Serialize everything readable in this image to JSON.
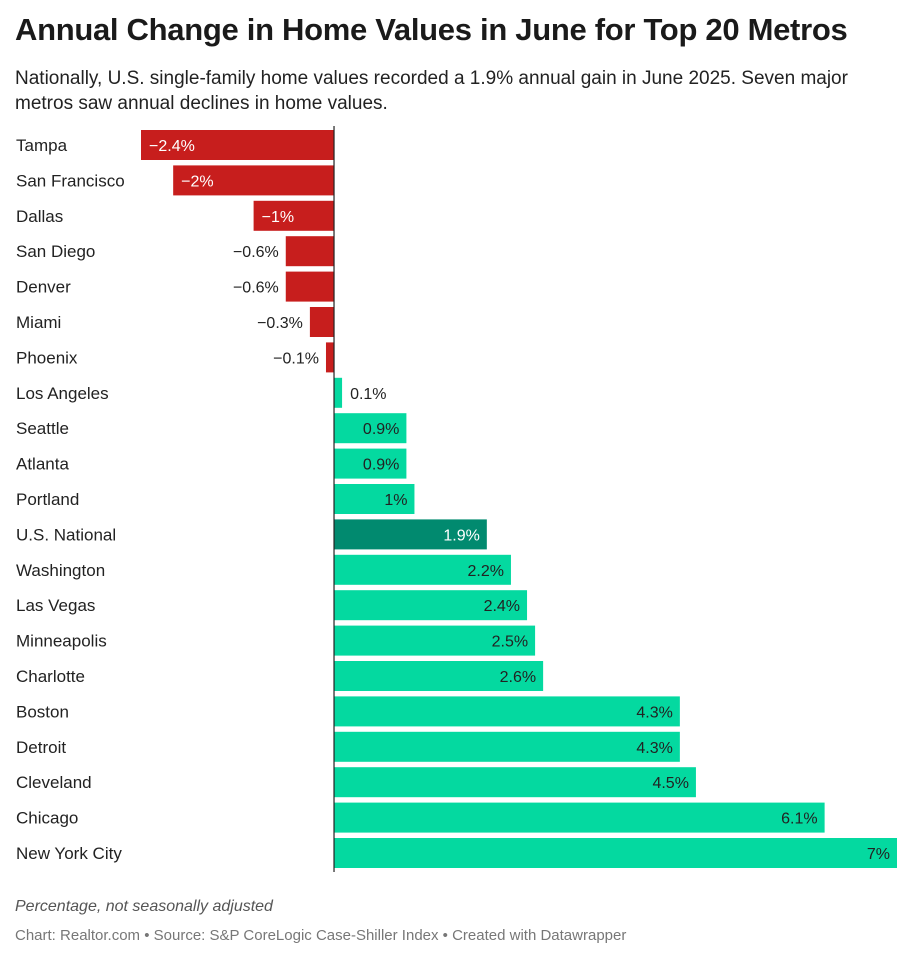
{
  "chart_data": {
    "type": "bar",
    "orientation": "horizontal",
    "title": "Annual Change in Home Values in June for Top 20 Metros",
    "subtitle": "Nationally, U.S. single-family home values recorded a 1.9% annual gain in June 2025. Seven major metros saw annual declines in home values.",
    "categories": [
      "Tampa",
      "San Francisco",
      "Dallas",
      "San Diego",
      "Denver",
      "Miami",
      "Phoenix",
      "Los Angeles",
      "Seattle",
      "Atlanta",
      "Portland",
      "U.S. National",
      "Washington",
      "Las Vegas",
      "Minneapolis",
      "Charlotte",
      "Boston",
      "Detroit",
      "Cleveland",
      "Chicago",
      "New York City"
    ],
    "values": [
      -2.4,
      -2,
      -1,
      -0.6,
      -0.6,
      -0.3,
      -0.1,
      0.1,
      0.9,
      0.9,
      1,
      1.9,
      2.2,
      2.4,
      2.5,
      2.6,
      4.3,
      4.3,
      4.5,
      6.1,
      7
    ],
    "value_labels": [
      "−2.4%",
      "−2%",
      "−1%",
      "−0.6%",
      "−0.6%",
      "−0.3%",
      "−0.1%",
      "0.1%",
      "0.9%",
      "0.9%",
      "1%",
      "1.9%",
      "2.2%",
      "2.4%",
      "2.5%",
      "2.6%",
      "4.3%",
      "4.3%",
      "4.5%",
      "6.1%",
      "7%"
    ],
    "xlim": [
      -2.4,
      7
    ],
    "highlight": "U.S. National",
    "colors": {
      "negative": "#c71e1d",
      "positive": "#04d9a0",
      "highlight": "#018a6f",
      "zero_line": "#222222"
    },
    "notes": "Percentage, not seasonally adjusted",
    "footer": "Chart: Realtor.com • Source: S&P CoreLogic Case-Shiller Index • Created with Datawrapper"
  }
}
